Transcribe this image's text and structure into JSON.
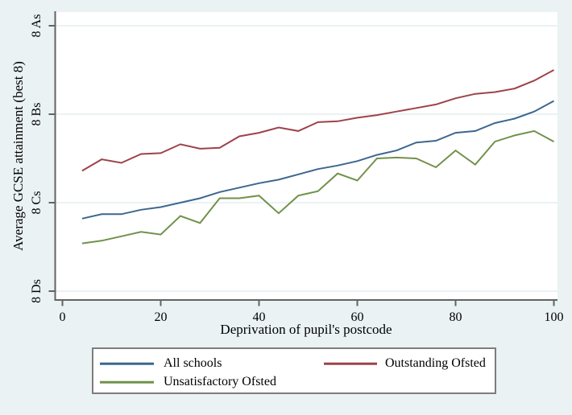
{
  "figure": {
    "background_color": "#eaf2f3",
    "plot_background_color": "#ffffff",
    "grid_color": "#dfeaed",
    "axis_color": "#636363",
    "text_color": "#000000",
    "legend_border_color": "#7d7d7d"
  },
  "chart_data": {
    "type": "line",
    "title": "",
    "xlabel": "Deprivation of pupil's postcode",
    "ylabel": "Average GCSE attainment (best 8)",
    "x_ticks": [
      0,
      20,
      40,
      60,
      80,
      100
    ],
    "y_tick_labels": [
      "8 As",
      "8 Bs",
      "8 Cs",
      "8 Ds"
    ],
    "y_tick_values": [
      3,
      2,
      1,
      0
    ],
    "y_value_scale": "grade units: 0 = 8 Ds, 1 = 8 Cs, 2 = 8 Bs, 3 = 8 As",
    "xlim": [
      0,
      100
    ],
    "ylim": [
      -0.1,
      3.16
    ],
    "grid": "horizontal",
    "legend_position": "bottom",
    "x": [
      4,
      8,
      12,
      16,
      20,
      24,
      28,
      32,
      36,
      40,
      44,
      48,
      52,
      56,
      60,
      64,
      68,
      72,
      76,
      80,
      84,
      88,
      92,
      96,
      100
    ],
    "series": [
      {
        "name": "All schools",
        "color": "#3c678f",
        "values": [
          0.82,
          0.87,
          0.87,
          0.92,
          0.95,
          1.0,
          1.05,
          1.12,
          1.17,
          1.22,
          1.26,
          1.32,
          1.38,
          1.42,
          1.47,
          1.54,
          1.59,
          1.68,
          1.7,
          1.79,
          1.81,
          1.9,
          1.95,
          2.03,
          2.15
        ]
      },
      {
        "name": "Outstanding Ofsted",
        "color": "#9e424b",
        "values": [
          1.36,
          1.49,
          1.45,
          1.55,
          1.56,
          1.66,
          1.61,
          1.62,
          1.75,
          1.79,
          1.85,
          1.81,
          1.91,
          1.92,
          1.96,
          1.99,
          2.03,
          2.07,
          2.11,
          2.18,
          2.23,
          2.25,
          2.29,
          2.38,
          2.5
        ]
      },
      {
        "name": "Unsatisfactory Ofsted",
        "color": "#72914b",
        "values": [
          0.54,
          0.57,
          0.62,
          0.67,
          0.64,
          0.85,
          0.77,
          1.05,
          1.05,
          1.08,
          0.88,
          1.08,
          1.13,
          1.33,
          1.25,
          1.5,
          1.51,
          1.5,
          1.4,
          1.59,
          1.43,
          1.69,
          1.76,
          1.81,
          1.69
        ]
      }
    ]
  }
}
